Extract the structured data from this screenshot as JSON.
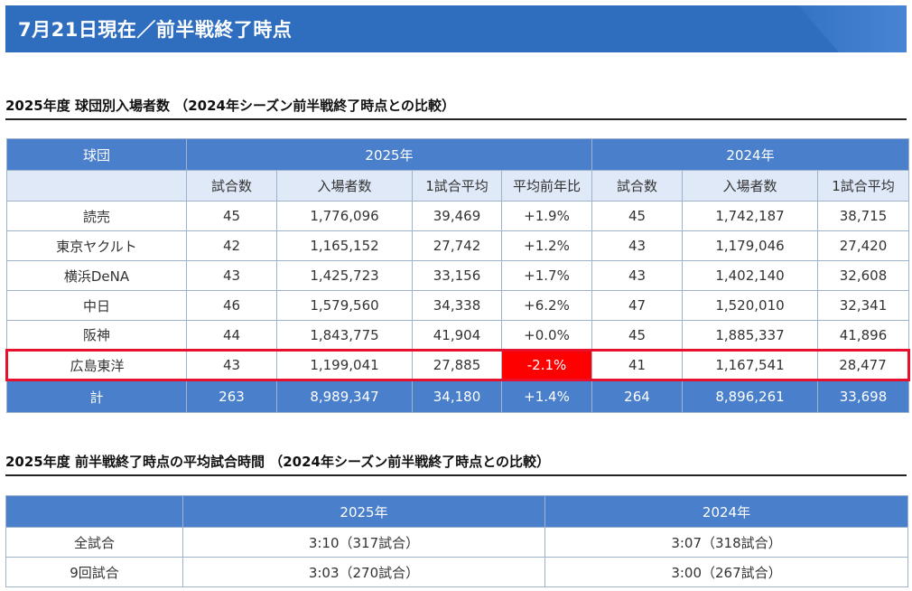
{
  "banner": {
    "title": "7月21日現在／前半戦終了時点"
  },
  "section1": {
    "title": "2025年度 球団別入場者数 （2024年シーズン前半戦終了時点との比較）",
    "header_team": "球団",
    "header_2025": "2025年",
    "header_2024": "2024年",
    "subheaders_2025": [
      "試合数",
      "入場者数",
      "1試合平均",
      "平均前年比"
    ],
    "subheaders_2024": [
      "試合数",
      "入場者数",
      "1試合平均"
    ],
    "rows": [
      {
        "team": "読売",
        "g25": "45",
        "att25": "1,776,096",
        "avg25": "39,469",
        "yoy": "+1.9%",
        "g24": "45",
        "att24": "1,742,187",
        "avg24": "38,715"
      },
      {
        "team": "東京ヤクルト",
        "g25": "42",
        "att25": "1,165,152",
        "avg25": "27,742",
        "yoy": "+1.2%",
        "g24": "43",
        "att24": "1,179,046",
        "avg24": "27,420"
      },
      {
        "team": "横浜DeNA",
        "g25": "43",
        "att25": "1,425,723",
        "avg25": "33,156",
        "yoy": "+1.7%",
        "g24": "43",
        "att24": "1,402,140",
        "avg24": "32,608"
      },
      {
        "team": "中日",
        "g25": "46",
        "att25": "1,579,560",
        "avg25": "34,338",
        "yoy": "+6.2%",
        "g24": "47",
        "att24": "1,520,010",
        "avg24": "32,341"
      },
      {
        "team": "阪神",
        "g25": "44",
        "att25": "1,843,775",
        "avg25": "41,904",
        "yoy": "+0.0%",
        "g24": "45",
        "att24": "1,885,337",
        "avg24": "41,896"
      },
      {
        "team": "広島東洋",
        "g25": "43",
        "att25": "1,199,041",
        "avg25": "27,885",
        "yoy": "-2.1%",
        "g24": "41",
        "att24": "1,167,541",
        "avg24": "28,477"
      }
    ],
    "total": {
      "team": "計",
      "g25": "263",
      "att25": "8,989,347",
      "avg25": "34,180",
      "yoy": "+1.4%",
      "g24": "264",
      "att24": "8,896,261",
      "avg24": "33,698"
    },
    "highlight_color": "#e8112d"
  },
  "section2": {
    "title": "2025年度 前半戦終了時点の平均試合時間 （2024年シーズン前半戦終了時点との比較）",
    "header_2025": "2025年",
    "header_2024": "2024年",
    "rows": [
      {
        "label": "全試合",
        "v2025": "3:10（317試合）",
        "v2024": "3:07（318試合）"
      },
      {
        "label": "9回試合",
        "v2025": "3:03（270試合）",
        "v2024": "3:00（267試合）"
      }
    ]
  },
  "colors": {
    "accent": "#4a7fcc",
    "subheader": "#dfe9f7",
    "banner": "#2f6ebf",
    "negative": "#ff0000"
  }
}
